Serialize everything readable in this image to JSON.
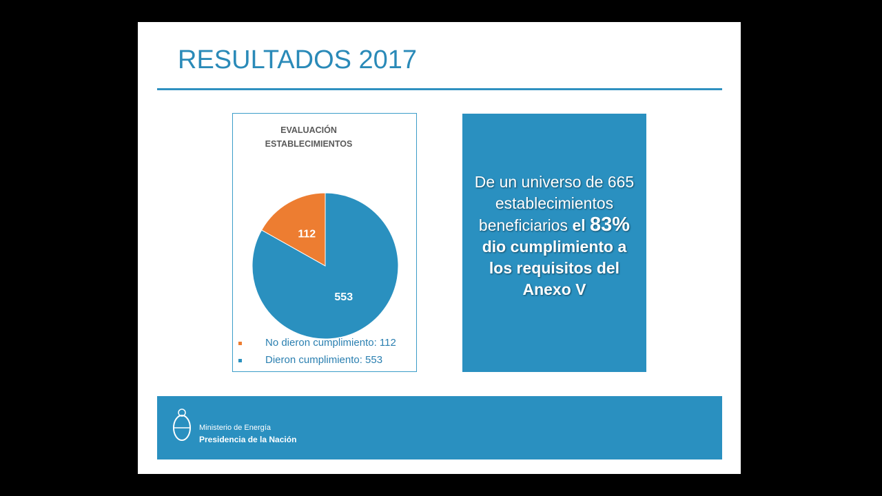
{
  "slide_title": "RESULTADOS 2017",
  "chart_data": {
    "type": "pie",
    "title": "EVALUACIÓN ESTABLECIMIENTOS",
    "categories": [
      "No dieron cumplimiento: 112",
      "Dieron cumplimiento: 553"
    ],
    "values": [
      112,
      553
    ],
    "colors": [
      "#ed7d31",
      "#2a90bf"
    ]
  },
  "callout": {
    "normal": "De un universo de 665 establecimientos beneficiarios",
    "bold_1": "el",
    "highlight": "83%",
    "bold_2": "dio cumplimiento a los requisitos del Anexo V"
  },
  "footer": {
    "line_1": "Ministerio de Energía",
    "line_2": "Presidencia de la Nación"
  }
}
